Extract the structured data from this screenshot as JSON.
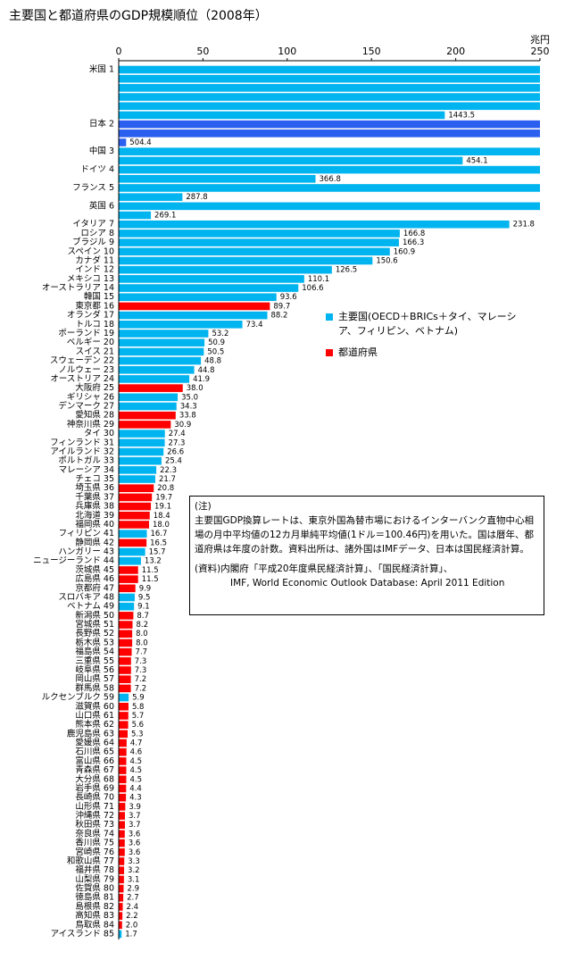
{
  "chart_data": {
    "type": "wrapped-hbar",
    "title": "主要国と都道府県のGDP規模順位（2008年）",
    "xlabel": "兆円",
    "xlim": [
      0,
      250
    ],
    "xticks": [
      0,
      50,
      100,
      150,
      200,
      250
    ],
    "categories": [
      "米国 1",
      "日本 2",
      "中国 3",
      "ドイツ 4",
      "フランス 5",
      "英国 6",
      "イタリア 7",
      "ロシア 8",
      "ブラジル 9",
      "スペイン 10",
      "カナダ 11",
      "インド 12",
      "メキシコ 13",
      "オーストラリア 14",
      "韓国 15",
      "東京都 16",
      "オランダ 17",
      "トルコ 18",
      "ポーランド 19",
      "ベルギー 20",
      "スイス 21",
      "スウェーデン 22",
      "ノルウェー 23",
      "オーストリア 24",
      "大阪府 25",
      "ギリシャ 26",
      "デンマーク 27",
      "愛知県 28",
      "神奈川県 29",
      "タイ 30",
      "フィンランド 31",
      "アイルランド 32",
      "ポルトガル 33",
      "マレーシア 34",
      "チェコ 35",
      "埼玉県 36",
      "千葉県 37",
      "兵庫県 38",
      "北海道 39",
      "福岡県 40",
      "フィリピン 41",
      "静岡県 42",
      "ハンガリー 43",
      "ニュージーランド 44",
      "茨城県 45",
      "広島県 46",
      "京都府 47",
      "スロバキア 48",
      "ベトナム 49",
      "新潟県 50",
      "宮城県 51",
      "長野県 52",
      "栃木県 53",
      "福島県 54",
      "三重県 55",
      "岐阜県 56",
      "岡山県 57",
      "群馬県 58",
      "ルクセンブルク 59",
      "滋賀県 60",
      "山口県 61",
      "熊本県 62",
      "鹿児島県 63",
      "愛媛県 64",
      "石川県 65",
      "富山県 66",
      "青森県 67",
      "大分県 68",
      "岩手県 69",
      "長崎県 70",
      "山形県 71",
      "沖縄県 72",
      "秋田県 73",
      "奈良県 74",
      "香川県 75",
      "宮崎県 76",
      "和歌山県 77",
      "福井県 78",
      "山梨県 79",
      "佐賀県 80",
      "徳島県 81",
      "島根県 82",
      "高知県 83",
      "鳥取県 84",
      "アイスランド 85"
    ],
    "values": [
      1443.5,
      504.4,
      454.1,
      366.8,
      287.8,
      269.1,
      231.8,
      166.8,
      166.3,
      160.9,
      150.6,
      126.5,
      110.1,
      106.6,
      93.6,
      89.7,
      88.2,
      73.4,
      53.2,
      50.9,
      50.5,
      48.8,
      44.8,
      41.9,
      38.0,
      35.0,
      34.3,
      33.8,
      30.9,
      27.4,
      27.3,
      26.6,
      25.4,
      22.3,
      21.7,
      20.8,
      19.7,
      19.1,
      18.4,
      18.0,
      16.7,
      16.5,
      15.7,
      13.2,
      11.5,
      11.5,
      9.9,
      9.5,
      9.1,
      8.7,
      8.2,
      8.0,
      8.0,
      7.7,
      7.3,
      7.3,
      7.2,
      7.2,
      5.9,
      5.8,
      5.7,
      5.6,
      5.3,
      4.7,
      4.6,
      4.5,
      4.5,
      4.5,
      4.4,
      4.3,
      3.9,
      3.7,
      3.7,
      3.6,
      3.6,
      3.6,
      3.3,
      3.2,
      3.1,
      2.9,
      2.7,
      2.4,
      2.2,
      2.0,
      1.7
    ],
    "value_labels": [
      "1443.5",
      "504.4",
      "454.1",
      "366.8",
      "287.8",
      "269.1",
      "231.8",
      "166.8",
      "166.3",
      "160.9",
      "150.6",
      "126.5",
      "110.1",
      "106.6",
      "93.6",
      "89.7",
      "88.2",
      "73.4",
      "53.2",
      "50.9",
      "50.5",
      "48.8",
      "44.8",
      "41.9",
      "38.0",
      "35.0",
      "34.3",
      "33.8",
      "30.9",
      "27.4",
      "27.3",
      "26.6",
      "25.4",
      "22.3",
      "21.7",
      "20.8",
      "19.7",
      "19.1",
      "18.4",
      "18.0",
      "16.7",
      "16.5",
      "15.7",
      "13.2",
      "11.5",
      "11.5",
      "9.9",
      "9.5",
      "9.1",
      "8.7",
      "8.2",
      "8.0",
      "8.0",
      "7.7",
      "7.3",
      "7.3",
      "7.2",
      "7.2",
      "5.9",
      "5.8",
      "5.7",
      "5.6",
      "5.3",
      "4.7",
      "4.6",
      "4.5",
      "4.5",
      "4.5",
      "4.4",
      "4.3",
      "3.9",
      "3.7",
      "3.7",
      "3.6",
      "3.6",
      "3.6",
      "3.3",
      "3.2",
      "3.1",
      "2.9",
      "2.7",
      "2.4",
      "2.2",
      "2.0",
      "1.7"
    ],
    "colors": [
      "#00b4f0",
      "#2b5ff0",
      "#00b4f0",
      "#00b4f0",
      "#00b4f0",
      "#00b4f0",
      "#00b4f0",
      "#00b4f0",
      "#00b4f0",
      "#00b4f0",
      "#00b4f0",
      "#00b4f0",
      "#00b4f0",
      "#00b4f0",
      "#00b4f0",
      "#ff0000",
      "#00b4f0",
      "#00b4f0",
      "#00b4f0",
      "#00b4f0",
      "#00b4f0",
      "#00b4f0",
      "#00b4f0",
      "#00b4f0",
      "#ff0000",
      "#00b4f0",
      "#00b4f0",
      "#ff0000",
      "#ff0000",
      "#00b4f0",
      "#00b4f0",
      "#00b4f0",
      "#00b4f0",
      "#00b4f0",
      "#00b4f0",
      "#ff0000",
      "#ff0000",
      "#ff0000",
      "#ff0000",
      "#ff0000",
      "#00b4f0",
      "#ff0000",
      "#00b4f0",
      "#00b4f0",
      "#ff0000",
      "#ff0000",
      "#ff0000",
      "#00b4f0",
      "#00b4f0",
      "#ff0000",
      "#ff0000",
      "#ff0000",
      "#ff0000",
      "#ff0000",
      "#ff0000",
      "#ff0000",
      "#ff0000",
      "#ff0000",
      "#00b4f0",
      "#ff0000",
      "#ff0000",
      "#ff0000",
      "#ff0000",
      "#ff0000",
      "#ff0000",
      "#ff0000",
      "#ff0000",
      "#ff0000",
      "#ff0000",
      "#ff0000",
      "#ff0000",
      "#ff0000",
      "#ff0000",
      "#ff0000",
      "#ff0000",
      "#ff0000",
      "#ff0000",
      "#ff0000",
      "#ff0000",
      "#ff0000",
      "#ff0000",
      "#ff0000",
      "#ff0000",
      "#ff0000",
      "#00b4f0"
    ],
    "legend": [
      {
        "name": "主要国(OECD＋BRICs＋タイ、マレーシア、フィリピン、ベトナム)",
        "color": "#00b4f0"
      },
      {
        "name": "都道府県",
        "color": "#ff0000"
      }
    ],
    "note": {
      "title": "(注)",
      "text": "主要国GDP換算レートは、東京外国為替市場におけるインターバンク直物中心相場の月中平均値の12カ月単純平均値(1ドル＝100.46円)を用いた。国は暦年、都道府県は年度の計数。資料出所は、諸外国はIMFデータ、日本は国民経済計算。",
      "source": [
        "(資料)内閣府「平成20年度県民経済計算」、「国民経済計算」、",
        "IMF, World Economic Outlook Database: April 2011 Edition"
      ]
    }
  }
}
